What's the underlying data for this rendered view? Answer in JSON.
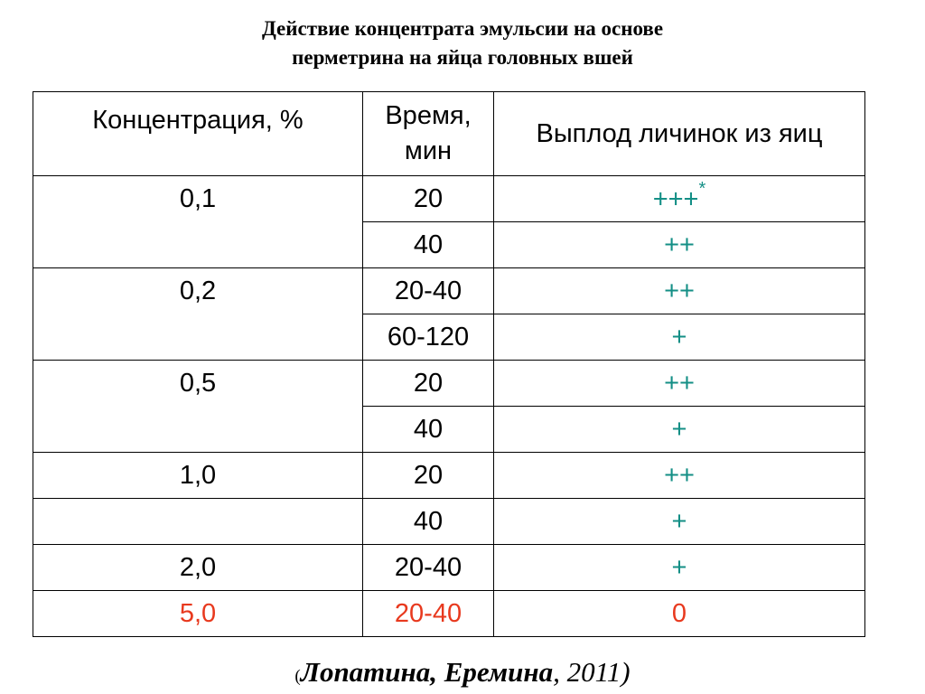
{
  "title": {
    "line1": "Действие концентрата эмульсии на основе",
    "line2": "перметрина на яйца головных вшей"
  },
  "table": {
    "headers": {
      "concentration": "Концентрация, %",
      "time": "Время, мин",
      "hatching": "Выплод личинок из яиц"
    },
    "rows": [
      {
        "concentration": "0,1",
        "time": "20",
        "effect": "+++",
        "footnote": "*"
      },
      {
        "concentration": "",
        "time": "40",
        "effect": "++"
      },
      {
        "concentration": "0,2",
        "time": "20-40",
        "effect": "++"
      },
      {
        "concentration": "",
        "time": "60-120",
        "effect": "+"
      },
      {
        "concentration": "0,5",
        "time": "20",
        "effect": "++"
      },
      {
        "concentration": "",
        "time": "40",
        "effect": "+"
      },
      {
        "concentration": "1,0",
        "time": "20",
        "effect": "++"
      },
      {
        "concentration": "",
        "time": "40",
        "effect": "+"
      },
      {
        "concentration": "2,0",
        "time": "20-40",
        "effect": "+"
      },
      {
        "concentration": "5,0",
        "time": "20-40",
        "effect": "0"
      }
    ]
  },
  "citation": {
    "open_paren": "(",
    "authors": "Лопатина,  Еремина",
    "year": ", 2011)"
  },
  "colors": {
    "effect_text": "#148f86",
    "highlight_row": "#e8391e"
  }
}
